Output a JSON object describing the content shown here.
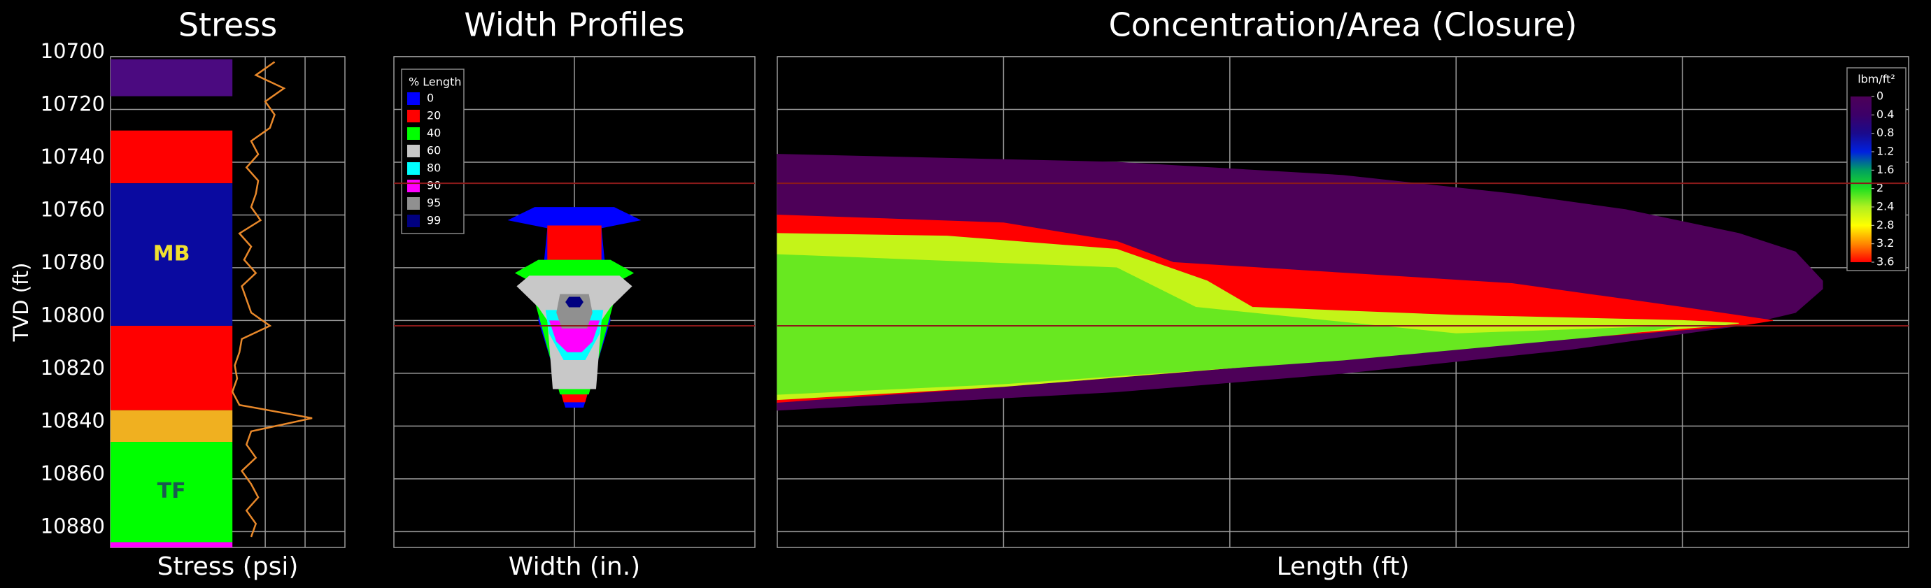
{
  "chart_data": [
    {
      "type": "layers",
      "title": "Stress",
      "xlabel": "Stress (psi)",
      "ylabel": "TVD (ft)",
      "ylim": [
        10700,
        10886
      ],
      "yticks": [
        10700,
        10720,
        10740,
        10760,
        10780,
        10800,
        10820,
        10840,
        10860,
        10880
      ],
      "xlim": [
        0,
        1
      ],
      "xgrid": [
        0.66,
        0.83
      ],
      "layers": {
        "tops": [
          10701,
          10728,
          10748,
          10802,
          10834,
          10846,
          10884
        ],
        "bottoms": [
          10715,
          10748,
          10802,
          10834,
          10846,
          10884,
          10886
        ],
        "colors": [
          "#4b0a80",
          "#ff0000",
          "#0a0aa0",
          "#ff0000",
          "#f0b020",
          "#00ff00",
          "#ff00ff"
        ],
        "labels": [
          null,
          null,
          "MB",
          null,
          null,
          "TF",
          null
        ],
        "label_colors": [
          null,
          null,
          "#f0e030",
          null,
          null,
          "#1a5a50",
          null
        ]
      },
      "curve": {
        "color": "#e8882a",
        "depth": [
          10702,
          10707,
          10712,
          10717,
          10722,
          10727,
          10732,
          10737,
          10742,
          10747,
          10752,
          10757,
          10762,
          10767,
          10772,
          10777,
          10782,
          10787,
          10792,
          10797,
          10802,
          10807,
          10812,
          10817,
          10822,
          10827,
          10832,
          10837,
          10842,
          10847,
          10852,
          10857,
          10862,
          10867,
          10872,
          10877,
          10882
        ],
        "x": [
          0.7,
          0.62,
          0.74,
          0.66,
          0.7,
          0.68,
          0.6,
          0.63,
          0.58,
          0.63,
          0.62,
          0.6,
          0.64,
          0.55,
          0.6,
          0.57,
          0.62,
          0.56,
          0.58,
          0.6,
          0.68,
          0.56,
          0.55,
          0.53,
          0.54,
          0.52,
          0.55,
          0.86,
          0.6,
          0.58,
          0.62,
          0.56,
          0.6,
          0.63,
          0.58,
          0.62,
          0.6
        ]
      }
    },
    {
      "type": "profiles",
      "title": "Width Profiles",
      "xlabel": "Width (in.)",
      "ylim": [
        10700,
        10886
      ],
      "xlim": [
        -1,
        1
      ],
      "xgrid": [
        0
      ],
      "legend_title": "% Length",
      "boundaries": [
        10748,
        10802
      ],
      "boundary_color": "#8b1a1a",
      "profiles": [
        {
          "name": "0",
          "color": "#0000ff",
          "depth": [
            10757,
            10762,
            10765,
            10800,
            10833
          ],
          "half_width": [
            0.22,
            0.37,
            0.15,
            0.2,
            0.05
          ]
        },
        {
          "name": "20",
          "color": "#ff0000",
          "depth": [
            10764,
            10778,
            10800,
            10831
          ],
          "half_width": [
            0.15,
            0.15,
            0.18,
            0.06
          ]
        },
        {
          "name": "40",
          "color": "#00ff00",
          "depth": [
            10777,
            10782,
            10785,
            10828
          ],
          "half_width": [
            0.2,
            0.33,
            0.25,
            0.08
          ]
        },
        {
          "name": "60",
          "color": "#c8c8c8",
          "depth": [
            10783,
            10787,
            10795,
            10800,
            10826
          ],
          "half_width": [
            0.25,
            0.32,
            0.2,
            0.15,
            0.12
          ]
        },
        {
          "name": "80",
          "color": "#00ffff",
          "depth": [
            10796,
            10805,
            10815
          ],
          "half_width": [
            0.16,
            0.14,
            0.06
          ]
        },
        {
          "name": "90",
          "color": "#ff00ff",
          "depth": [
            10800,
            10808,
            10812
          ],
          "half_width": [
            0.14,
            0.1,
            0.04
          ]
        },
        {
          "name": "95",
          "color": "#909090",
          "depth": [
            10790,
            10797,
            10803
          ],
          "half_width": [
            0.08,
            0.1,
            0.07
          ]
        },
        {
          "name": "99",
          "color": "#000080",
          "depth": [
            10791,
            10793,
            10795
          ],
          "half_width": [
            0.03,
            0.05,
            0.03
          ]
        }
      ]
    },
    {
      "type": "heatmap",
      "title": "Concentration/Area (Closure)",
      "xlabel": "Length (ft)",
      "ylim": [
        10700,
        10886
      ],
      "xlim": [
        0,
        1
      ],
      "xgrid": [
        0.2,
        0.4,
        0.6,
        0.8
      ],
      "boundaries": [
        10748,
        10802
      ],
      "boundary_color": "#8b1a1a",
      "colorbar": {
        "label": "lbm/ft²",
        "ticks": [
          0,
          0.4,
          0.8,
          1.2,
          1.6,
          2,
          2.4,
          2.8,
          3.2,
          3.6
        ],
        "colors": [
          "#4d0058",
          "#3c0068",
          "#1a0a8c",
          "#0020e0",
          "#00a060",
          "#20e020",
          "#b0f020",
          "#ffff00",
          "#ff8800",
          "#ff0000"
        ]
      },
      "regions": [
        {
          "value": 0,
          "x": [
            0,
            0.3,
            0.5,
            0.65,
            0.75,
            0.85,
            0.9,
            0.924,
            0.924,
            0.9,
            0.85,
            0.7,
            0.5,
            0.3,
            0
          ],
          "y": [
            10737,
            10740,
            10745,
            10752,
            10758,
            10767,
            10774,
            10785,
            10788,
            10797,
            10802,
            10811,
            10820,
            10827,
            10834
          ]
        },
        {
          "value": 3.6,
          "x": [
            0,
            0.2,
            0.3,
            0.35,
            0.5,
            0.65,
            0.8,
            0.88,
            0.85,
            0.6,
            0.4,
            0.2,
            0
          ],
          "y": [
            10760,
            10763,
            10770,
            10778,
            10782,
            10786,
            10795,
            10800,
            10802,
            10810,
            10818,
            10825,
            10831
          ]
        },
        {
          "value": 2.5,
          "x": [
            0,
            0.15,
            0.3,
            0.38,
            0.42,
            0.6,
            0.8,
            0.85,
            0.83,
            0.6,
            0.4,
            0.2,
            0
          ],
          "y": [
            10767,
            10768,
            10773,
            10785,
            10795,
            10798,
            10800,
            10801,
            10802,
            10810,
            10818,
            10825,
            10830
          ]
        },
        {
          "value": 2.2,
          "x": [
            0,
            0.3,
            0.37,
            0.6,
            0.8,
            0.75,
            0.5,
            0.2,
            0
          ],
          "y": [
            10775,
            10780,
            10795,
            10805,
            10802,
            10805,
            10815,
            10824,
            10828
          ]
        }
      ]
    }
  ]
}
